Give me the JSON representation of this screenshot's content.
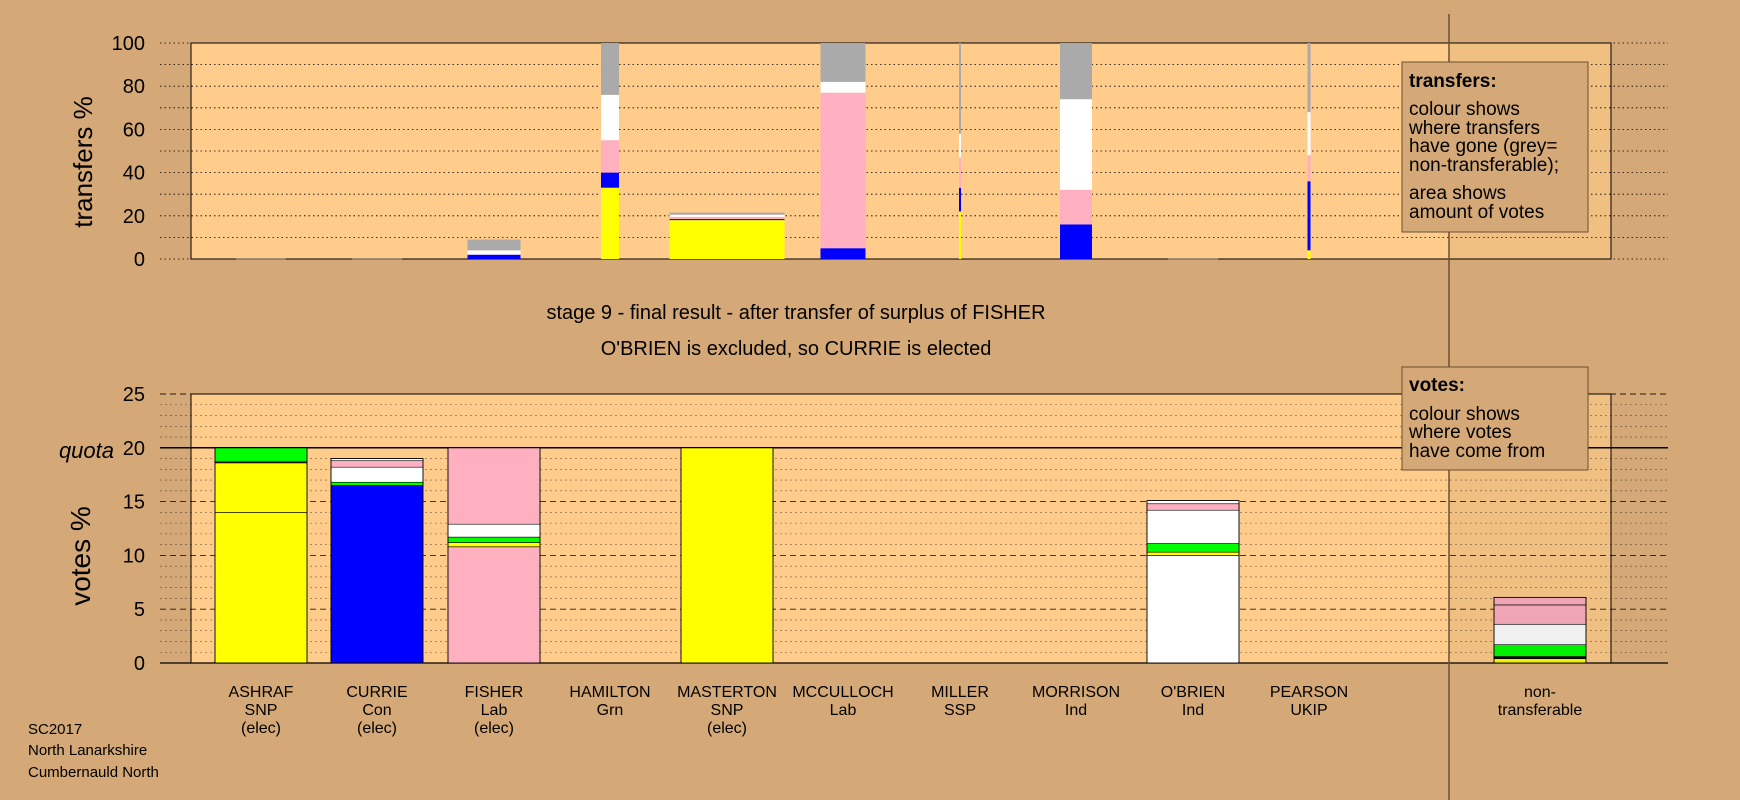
{
  "colors": {
    "background": "#d4a977",
    "plot_area": "#ffcc8c",
    "snp": "#ffff00",
    "con": "#0000ff",
    "lab": "#ffb0c0",
    "grn": "#00ff00",
    "ind": "#ffffff",
    "ssp": "#ff0000",
    "ukip": "#800080",
    "non_transferable": "#aaaaaa"
  },
  "stage": {
    "line1": "stage 9 - final result - after transfer of surplus of FISHER",
    "line2": "O'BRIEN is excluded, so CURRIE is elected"
  },
  "footer": {
    "line1": "SC2017",
    "line2": "North Lanarkshire",
    "line3": "Cumbernauld North"
  },
  "legends": {
    "transfers": {
      "title": "transfers:",
      "lines": [
        "colour shows",
        "where transfers",
        "have gone (grey=",
        "non-transferable);",
        "area shows",
        "amount of votes"
      ]
    },
    "votes": {
      "title": "votes:",
      "lines": [
        "colour shows",
        "where votes",
        "have come from"
      ]
    }
  },
  "chart_data": [
    {
      "type": "bar",
      "name": "transfers",
      "ylabel": "transfers %",
      "ylim": [
        0,
        100
      ],
      "yticks": [
        0,
        20,
        40,
        60,
        80,
        100
      ],
      "grid": "dotted",
      "categories": [
        "ASHRAF",
        "CURRIE",
        "FISHER",
        "HAMILTON",
        "MASTERTON",
        "MCCULLOCH",
        "MILLER",
        "MORRISON",
        "O'BRIEN",
        "PEARSON"
      ],
      "bars": [
        {
          "candidate": "ASHRAF",
          "width_share": 0.5,
          "segments": []
        },
        {
          "candidate": "CURRIE",
          "width_share": 0.5,
          "segments": []
        },
        {
          "candidate": "FISHER",
          "width_share": 0.53,
          "segments": [
            {
              "color": "#0000ff",
              "value": 2
            },
            {
              "color": "#ffffff",
              "value": 2
            },
            {
              "color": "#aaaaaa",
              "value": 5
            }
          ]
        },
        {
          "candidate": "HAMILTON",
          "width_share": 0.18,
          "segments": [
            {
              "color": "#ffff00",
              "value": 33
            },
            {
              "color": "#0000ff",
              "value": 7
            },
            {
              "color": "#ffb0c0",
              "value": 15
            },
            {
              "color": "#ffffff",
              "value": 21
            },
            {
              "color": "#aaaaaa",
              "value": 24
            }
          ]
        },
        {
          "candidate": "MASTERTON",
          "width_share": 1.15,
          "segments": [
            {
              "color": "#ffff00",
              "value": 18
            },
            {
              "color": "#0000ff",
              "value": 0.5
            },
            {
              "color": "#ffb0c0",
              "value": 1
            },
            {
              "color": "#ffffff",
              "value": 1
            },
            {
              "color": "#aaaaaa",
              "value": 1
            }
          ]
        },
        {
          "candidate": "MCCULLOCH",
          "width_share": 0.45,
          "segments": [
            {
              "color": "#0000ff",
              "value": 5
            },
            {
              "color": "#ffb0c0",
              "value": 72
            },
            {
              "color": "#ffffff",
              "value": 5
            },
            {
              "color": "#aaaaaa",
              "value": 18
            }
          ]
        },
        {
          "candidate": "MILLER",
          "width_share": 0.02,
          "segments": [
            {
              "color": "#ffff00",
              "value": 22
            },
            {
              "color": "#0000ff",
              "value": 11
            },
            {
              "color": "#ffb0c0",
              "value": 14
            },
            {
              "color": "#ffffff",
              "value": 11
            },
            {
              "color": "#aaaaaa",
              "value": 42
            }
          ]
        },
        {
          "candidate": "MORRISON",
          "width_share": 0.32,
          "segments": [
            {
              "color": "#0000ff",
              "value": 16
            },
            {
              "color": "#ffb0c0",
              "value": 16
            },
            {
              "color": "#ffffff",
              "value": 42
            },
            {
              "color": "#aaaaaa",
              "value": 26
            }
          ]
        },
        {
          "candidate": "O'BRIEN",
          "width_share": 0.5,
          "segments": []
        },
        {
          "candidate": "PEARSON",
          "width_share": 0.03,
          "segments": [
            {
              "color": "#ffff00",
              "value": 4
            },
            {
              "color": "#0000ff",
              "value": 32
            },
            {
              "color": "#ffb0c0",
              "value": 12
            },
            {
              "color": "#ffffff",
              "value": 20
            },
            {
              "color": "#aaaaaa",
              "value": 32
            }
          ]
        }
      ]
    },
    {
      "type": "bar",
      "name": "votes",
      "ylabel": "votes %",
      "ylim": [
        0,
        25
      ],
      "yticks": [
        0,
        5,
        10,
        15,
        20,
        25
      ],
      "quota": {
        "label": "quota",
        "value": 20
      },
      "grid": "dashed",
      "categories": [
        {
          "name": "ASHRAF",
          "party": "SNP",
          "status": "(elec)"
        },
        {
          "name": "CURRIE",
          "party": "Con",
          "status": "(elec)"
        },
        {
          "name": "FISHER",
          "party": "Lab",
          "status": "(elec)"
        },
        {
          "name": "HAMILTON",
          "party": "Grn",
          "status": ""
        },
        {
          "name": "MASTERTON",
          "party": "SNP",
          "status": "(elec)"
        },
        {
          "name": "MCCULLOCH",
          "party": "Lab",
          "status": ""
        },
        {
          "name": "MILLER",
          "party": "SSP",
          "status": ""
        },
        {
          "name": "MORRISON",
          "party": "Ind",
          "status": ""
        },
        {
          "name": "O'BRIEN",
          "party": "Ind",
          "status": ""
        },
        {
          "name": "PEARSON",
          "party": "UKIP",
          "status": ""
        }
      ],
      "nontransferable_label": [
        "non-",
        "transferable"
      ],
      "bars": [
        {
          "candidate": "ASHRAF",
          "segments": [
            {
              "color": "#ffff00",
              "value": 14
            },
            {
              "color": "#ffff00",
              "value": 4.6
            },
            {
              "color": "#0000ff",
              "value": 0.05
            },
            {
              "color": "#ffb0c0",
              "value": 0.1
            },
            {
              "color": "#00ff00",
              "value": 1.25
            }
          ]
        },
        {
          "candidate": "CURRIE",
          "segments": [
            {
              "color": "#0000ff",
              "value": 16.5
            },
            {
              "color": "#00ff00",
              "value": 0.3
            },
            {
              "color": "#ffffff",
              "value": 1.4
            },
            {
              "color": "#ffb0c0",
              "value": 0.6
            },
            {
              "color": "#ffffff",
              "value": 0.2
            }
          ]
        },
        {
          "candidate": "FISHER",
          "segments": [
            {
              "color": "#ffb0c0",
              "value": 10.8
            },
            {
              "color": "#ffff00",
              "value": 0.4
            },
            {
              "color": "#00ff00",
              "value": 0.5
            },
            {
              "color": "#ffffff",
              "value": 1.2
            },
            {
              "color": "#ffb0c0",
              "value": 7.1
            }
          ]
        },
        {
          "candidate": "HAMILTON",
          "segments": []
        },
        {
          "candidate": "MASTERTON",
          "segments": [
            {
              "color": "#ffff00",
              "value": 20
            }
          ]
        },
        {
          "candidate": "MCCULLOCH",
          "segments": []
        },
        {
          "candidate": "MILLER",
          "segments": []
        },
        {
          "candidate": "MORRISON",
          "segments": []
        },
        {
          "candidate": "O'BRIEN",
          "segments": [
            {
              "color": "#ffffff",
              "value": 10
            },
            {
              "color": "#ffff00",
              "value": 0.3
            },
            {
              "color": "#00ff00",
              "value": 0.8
            },
            {
              "color": "#ffffff",
              "value": 3.1
            },
            {
              "color": "#ffb0c0",
              "value": 0.6
            },
            {
              "color": "#ffffff",
              "value": 0.3
            }
          ]
        },
        {
          "candidate": "PEARSON",
          "segments": []
        }
      ],
      "nontransferable": {
        "segments": [
          {
            "color": "#ffff00",
            "value": 0.4
          },
          {
            "color": "#000000",
            "value": 0.2
          },
          {
            "color": "#00ff00",
            "value": 1.1
          },
          {
            "color": "#ffffff",
            "value": 1.9
          },
          {
            "color": "#ffb0c0",
            "value": 1.8
          },
          {
            "color": "#ffb0c0",
            "value": 0.7
          }
        ]
      }
    }
  ]
}
